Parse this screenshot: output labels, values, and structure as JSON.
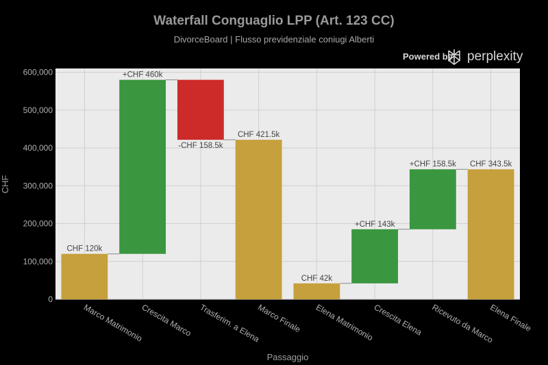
{
  "header": {
    "title": "Waterfall Conguaglio LPP (Art. 123 CC)",
    "subtitle": "DivorceBoard | Flusso previdenziale coniugi Alberti"
  },
  "branding": {
    "powered_by": "Powered by",
    "name": "perplexity",
    "icon": "perplexity-logo-icon"
  },
  "colors": {
    "total": "#c6a03c",
    "increase": "#3a963f",
    "decrease": "#cd2a2a",
    "plot_bg": "#ebebeb",
    "grid": "#cfcfcf",
    "connector": "#888888"
  },
  "chart_data": {
    "type": "waterfall",
    "title": "Waterfall Conguaglio LPP (Art. 123 CC)",
    "subtitle": "DivorceBoard | Flusso previdenziale coniugi Alberti",
    "xlabel": "Passaggio",
    "ylabel": "CHF",
    "ylim": [
      0,
      610000
    ],
    "yticks": [
      0,
      100000,
      200000,
      300000,
      400000,
      500000,
      600000
    ],
    "ytick_labels": [
      "0",
      "100,000",
      "200,000",
      "300,000",
      "400,000",
      "500,000",
      "600,000"
    ],
    "grid": true,
    "legend": "none",
    "steps": [
      {
        "category": "Marco Matrimonio",
        "kind": "total",
        "base": 0,
        "value": 120000,
        "label": "CHF 120k"
      },
      {
        "category": "Crescita Marco",
        "kind": "increase",
        "base": 120000,
        "value": 460000,
        "label": "+CHF 460k"
      },
      {
        "category": "Trasferim. a Elena",
        "kind": "decrease",
        "base": 580000,
        "value": -158500,
        "label": "-CHF 158.5k"
      },
      {
        "category": "Marco Finale",
        "kind": "total",
        "base": 0,
        "value": 421500,
        "label": "CHF 421.5k"
      },
      {
        "category": "Elena Matrimonio",
        "kind": "total",
        "base": 0,
        "value": 42000,
        "label": "CHF 42k"
      },
      {
        "category": "Crescita Elena",
        "kind": "increase",
        "base": 42000,
        "value": 143000,
        "label": "+CHF 143k"
      },
      {
        "category": "Ricevuto da Marco",
        "kind": "increase",
        "base": 185000,
        "value": 158500,
        "label": "+CHF 158.5k"
      },
      {
        "category": "Elena Finale",
        "kind": "total",
        "base": 0,
        "value": 343500,
        "label": "CHF 343.5k"
      }
    ]
  }
}
